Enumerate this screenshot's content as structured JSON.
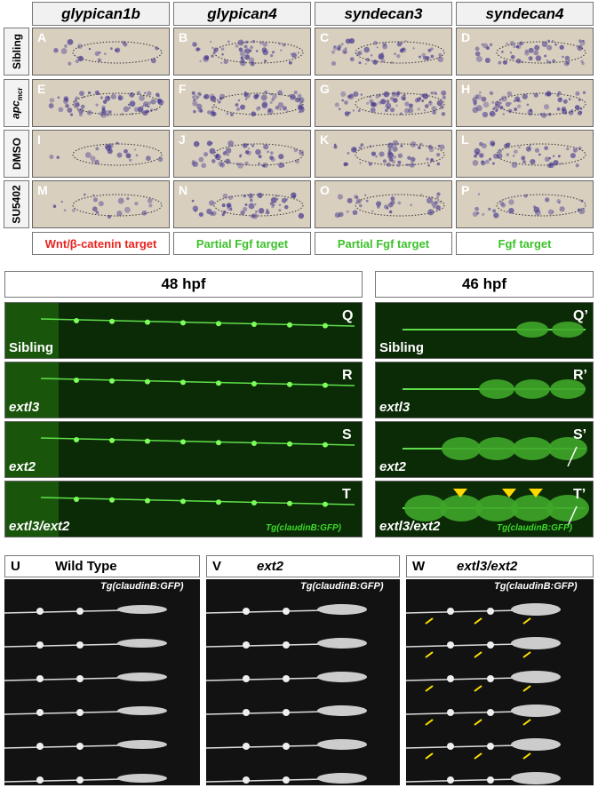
{
  "expression_grid": {
    "column_headers": [
      "glypican1b",
      "glypican4",
      "syndecan3",
      "syndecan4"
    ],
    "row_labels": [
      "Sibling",
      "apc",
      "DMSO",
      "SU5402"
    ],
    "apc_subscript": "mcr",
    "panel_letters": [
      [
        "A",
        "B",
        "C",
        "D"
      ],
      [
        "E",
        "F",
        "G",
        "H"
      ],
      [
        "I",
        "J",
        "K",
        "L"
      ],
      [
        "M",
        "N",
        "O",
        "P"
      ]
    ],
    "footers": [
      {
        "text": "Wnt/β-catenin target",
        "color": "#e8231f"
      },
      {
        "text": "Partial Fgf target",
        "color": "#3cc12b"
      },
      {
        "text": "Partial Fgf target",
        "color": "#3cc12b"
      },
      {
        "text": "Fgf target",
        "color": "#3cc12b"
      }
    ]
  },
  "gfp_time_course": {
    "headers": [
      "48 hpf",
      "46 hpf"
    ],
    "left_panels": [
      {
        "letter": "Q",
        "label": "Sibling"
      },
      {
        "letter": "R",
        "label": "extl3"
      },
      {
        "letter": "S",
        "label": "ext2"
      },
      {
        "letter": "T",
        "label": "extl3/ext2"
      }
    ],
    "right_panels": [
      {
        "letter": "Q’",
        "label": "Sibling"
      },
      {
        "letter": "R’",
        "label": "extl3"
      },
      {
        "letter": "S’",
        "label": "ext2"
      },
      {
        "letter": "T’",
        "label": "extl3/ext2"
      }
    ],
    "transgene": "Tg(claudinB:GFP)"
  },
  "gfp_series": {
    "panels": [
      {
        "letter": "U",
        "title": "Wild Type"
      },
      {
        "letter": "V",
        "title": "ext2"
      },
      {
        "letter": "W",
        "title": "extl3/ext2"
      }
    ],
    "transgene": "Tg(claudinB:GFP)"
  }
}
